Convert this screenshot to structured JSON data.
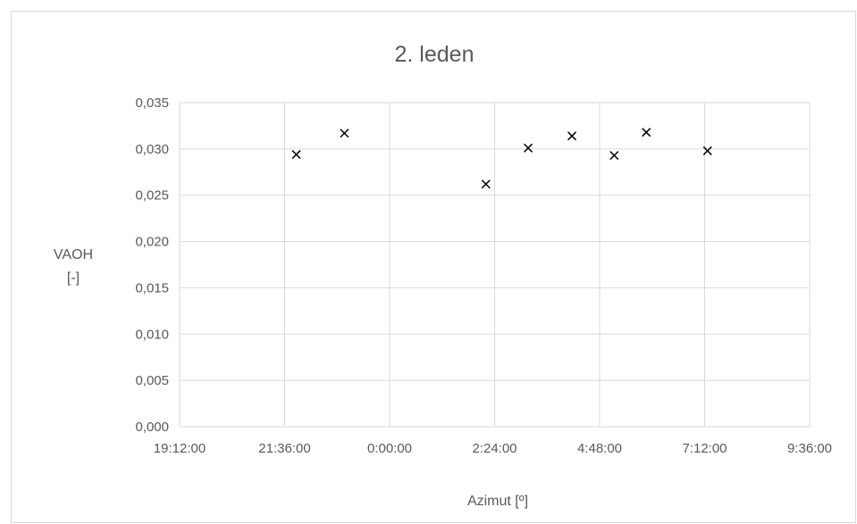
{
  "chart_data": {
    "type": "scatter",
    "title": "2. leden",
    "xlabel": "Azimut [º]",
    "ylabel": [
      "VAOH",
      "[-]"
    ],
    "x_unit": "time (h:mm:ss, wraps at midnight)",
    "xlim": [
      "19:12:00",
      "9:36:00"
    ],
    "x_ticks": [
      "19:12:00",
      "21:36:00",
      "0:00:00",
      "2:24:00",
      "4:48:00",
      "7:12:00",
      "9:36:00"
    ],
    "ylim": [
      0,
      0.035
    ],
    "y_ticks": [
      "0,000",
      "0,005",
      "0,010",
      "0,015",
      "0,020",
      "0,025",
      "0,030",
      "0,035"
    ],
    "grid": true,
    "legend": "none",
    "marker": "x",
    "marker_color": "#000000",
    "series": [
      {
        "points": [
          {
            "x": "21:52:00",
            "y": 0.0294
          },
          {
            "x": "22:58:00",
            "y": 0.0317
          },
          {
            "x": "2:12:00",
            "y": 0.0262
          },
          {
            "x": "3:10:00",
            "y": 0.0301
          },
          {
            "x": "4:10:00",
            "y": 0.0314
          },
          {
            "x": "5:08:00",
            "y": 0.0293
          },
          {
            "x": "5:52:00",
            "y": 0.0318
          },
          {
            "x": "7:16:00",
            "y": 0.0298
          }
        ]
      }
    ]
  },
  "colors": {
    "grid": "#d9d9d9",
    "text": "#595959",
    "marker": "#000000",
    "border": "#d9d9d9"
  }
}
